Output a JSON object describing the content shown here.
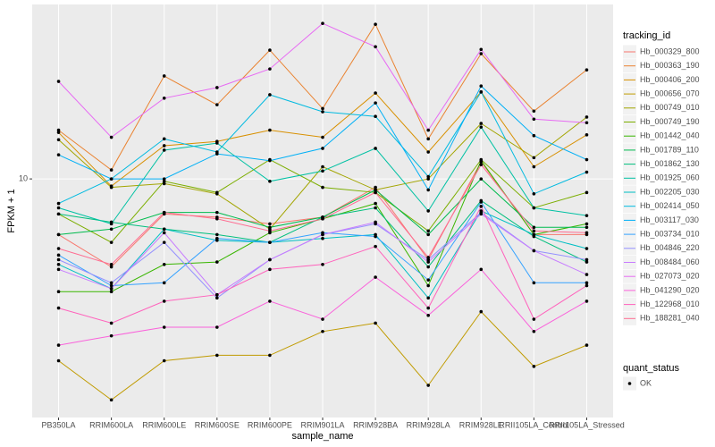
{
  "chart_data": {
    "type": "line",
    "x_label": "sample_name",
    "y_label": "FPKM + 1",
    "log_scale": true,
    "grid": true,
    "categories": [
      "PB350LA",
      "RRIM600LA",
      "RRIM600LE",
      "RRIM600SE",
      "RRIM600PE",
      "RRIM901LA",
      "RRIM928BA",
      "RRIM928LA",
      "RRIM928LE",
      "RRII105LA_Control",
      "RRII105LA_Stressed"
    ],
    "ylim": [
      1.29,
      44.7
    ],
    "yticks": [
      10
    ],
    "legend_title": "tracking_id",
    "legend_position": "right",
    "point_color": "#000000",
    "point_legend": {
      "title": "quant_status",
      "entries": [
        "OK"
      ]
    },
    "series": [
      {
        "name": "Hb_000329_800",
        "color": "#F8766D",
        "values": [
          6.2,
          4.7,
          7.4,
          7.2,
          6.8,
          7.2,
          9.3,
          5.0,
          11.6,
          6.2,
          6.2
        ]
      },
      {
        "name": "Hb_000363_190",
        "color": "#EA8331",
        "values": [
          15.2,
          10.8,
          24.2,
          18.9,
          30.2,
          18.3,
          37.7,
          14.1,
          29.3,
          17.9,
          25.5
        ]
      },
      {
        "name": "Hb_000406_200",
        "color": "#D89000",
        "values": [
          14.9,
          9.4,
          13.3,
          13.8,
          15.2,
          14.3,
          20.9,
          12.6,
          21.1,
          11.1,
          14.6
        ]
      },
      {
        "name": "Hb_000656_070",
        "color": "#C09B00",
        "values": [
          2.1,
          1.5,
          2.1,
          2.2,
          2.2,
          2.7,
          2.9,
          1.7,
          3.2,
          2.0,
          2.4
        ]
      },
      {
        "name": "Hb_000749_010",
        "color": "#A3A500",
        "values": [
          14.0,
          9.3,
          9.6,
          8.8,
          6.5,
          11.1,
          9.1,
          10,
          16.1,
          12.0,
          17.0
        ]
      },
      {
        "name": "Hb_000749_190",
        "color": "#7CAE00",
        "values": [
          7.4,
          5.8,
          9.8,
          8.9,
          11.8,
          9.3,
          8.9,
          6.4,
          11.8,
          7.8,
          8.9
        ]
      },
      {
        "name": "Hb_001442_040",
        "color": "#39B600",
        "values": [
          3.8,
          3.8,
          4.8,
          4.9,
          6.3,
          7.1,
          8.1,
          4.0,
          11.7,
          6.2,
          6.8
        ]
      },
      {
        "name": "Hb_001789_110",
        "color": "#00BB4E",
        "values": [
          6.2,
          6.5,
          7.5,
          7.5,
          6.6,
          7.2,
          9.1,
          6.2,
          10,
          6.6,
          6.6
        ]
      },
      {
        "name": "Hb_001862_130",
        "color": "#00BF7D",
        "values": [
          7.4,
          6.9,
          6.5,
          6.2,
          5.8,
          7.2,
          7.8,
          4.7,
          8.3,
          6.1,
          4.9
        ]
      },
      {
        "name": "Hb_001925_060",
        "color": "#00C1A3",
        "values": [
          7.8,
          6.8,
          12.8,
          13.6,
          9.8,
          10.7,
          13.0,
          7.6,
          15.6,
          7.8,
          7.3
        ]
      },
      {
        "name": "Hb_002205_030",
        "color": "#00BFC4",
        "values": [
          4.8,
          3.9,
          6.5,
          5.9,
          5.8,
          6.0,
          6.2,
          3.6,
          7.6,
          6.2,
          5.5
        ]
      },
      {
        "name": "Hb_002414_050",
        "color": "#00BAE0",
        "values": [
          8.1,
          10,
          14.1,
          12.6,
          20.6,
          17.8,
          17.1,
          10.2,
          21.1,
          8.8,
          10.6
        ]
      },
      {
        "name": "Hb_003117_030",
        "color": "#00B0F6",
        "values": [
          12.3,
          10,
          10,
          12.4,
          11.7,
          13.0,
          19.2,
          9.1,
          22.2,
          14.5,
          11.8
        ]
      },
      {
        "name": "Hb_003734_010",
        "color": "#35A2FF",
        "values": [
          5.2,
          4.0,
          4.1,
          6.0,
          5.8,
          6.3,
          6.1,
          4.2,
          8.2,
          4.1,
          4.1
        ]
      },
      {
        "name": "Hb_004846_220",
        "color": "#9590FF",
        "values": [
          5.0,
          4.1,
          5.8,
          3.6,
          5.0,
          6.2,
          6.8,
          5.0,
          7.5,
          5.4,
          5.0
        ]
      },
      {
        "name": "Hb_008484_060",
        "color": "#C77CFF",
        "values": [
          4.6,
          3.9,
          6.3,
          3.7,
          5.0,
          6.2,
          6.9,
          4.9,
          7.4,
          5.4,
          4.4
        ]
      },
      {
        "name": "Hb_027073_020",
        "color": "#E76BF3",
        "values": [
          23.1,
          14.3,
          20.0,
          21.9,
          25.7,
          38.0,
          31.1,
          15.2,
          30.4,
          16.7,
          16.2
        ]
      },
      {
        "name": "Hb_041290_020",
        "color": "#FA62DB",
        "values": [
          2.4,
          2.6,
          2.8,
          2.8,
          3.5,
          3.0,
          4.3,
          3.1,
          4.6,
          2.7,
          3.5
        ]
      },
      {
        "name": "Hb_122968_010",
        "color": "#FF62BC",
        "values": [
          3.3,
          2.9,
          3.5,
          3.7,
          4.6,
          4.8,
          5.6,
          3.3,
          7.9,
          3.0,
          4.0
        ]
      },
      {
        "name": "Hb_188281_040",
        "color": "#FF6C91",
        "values": [
          5.5,
          4.8,
          7.5,
          7.1,
          6.4,
          7.1,
          8.9,
          5.1,
          11.3,
          6.4,
          6.3
        ]
      }
    ]
  }
}
